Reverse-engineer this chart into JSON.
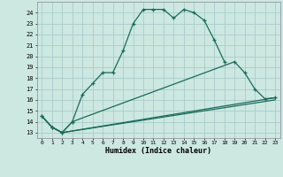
{
  "title": "",
  "xlabel": "Humidex (Indice chaleur)",
  "ylabel": "",
  "bg_color": "#cce8e0",
  "grid_color": "#aacccc",
  "line_color": "#1a6b5a",
  "xlim": [
    -0.5,
    23.5
  ],
  "ylim": [
    12.5,
    25.0
  ],
  "yticks": [
    13,
    14,
    15,
    16,
    17,
    18,
    19,
    20,
    21,
    22,
    23,
    24
  ],
  "xticks": [
    0,
    1,
    2,
    3,
    4,
    5,
    6,
    7,
    8,
    9,
    10,
    11,
    12,
    13,
    14,
    15,
    16,
    17,
    18,
    19,
    20,
    21,
    22,
    23
  ],
  "series1_x": [
    0,
    1,
    2,
    3,
    4,
    5,
    6,
    7,
    8,
    9,
    10,
    11,
    12,
    13,
    14,
    15,
    16,
    17,
    18
  ],
  "series1_y": [
    14.5,
    13.5,
    13.0,
    14.0,
    16.5,
    17.5,
    18.5,
    18.5,
    20.5,
    23.0,
    24.3,
    24.3,
    24.3,
    23.5,
    24.3,
    24.0,
    23.3,
    21.5,
    19.5
  ],
  "series2_x": [
    0,
    1,
    2,
    3,
    19,
    20,
    21,
    22,
    23
  ],
  "series2_y": [
    14.5,
    13.5,
    13.0,
    14.0,
    19.5,
    18.5,
    17.0,
    16.1,
    16.2
  ],
  "series3_x": [
    0,
    1,
    2,
    23
  ],
  "series3_y": [
    14.5,
    13.5,
    13.0,
    16.2
  ],
  "series4_x": [
    0,
    1,
    2,
    23
  ],
  "series4_y": [
    14.5,
    13.5,
    13.0,
    16.0
  ]
}
